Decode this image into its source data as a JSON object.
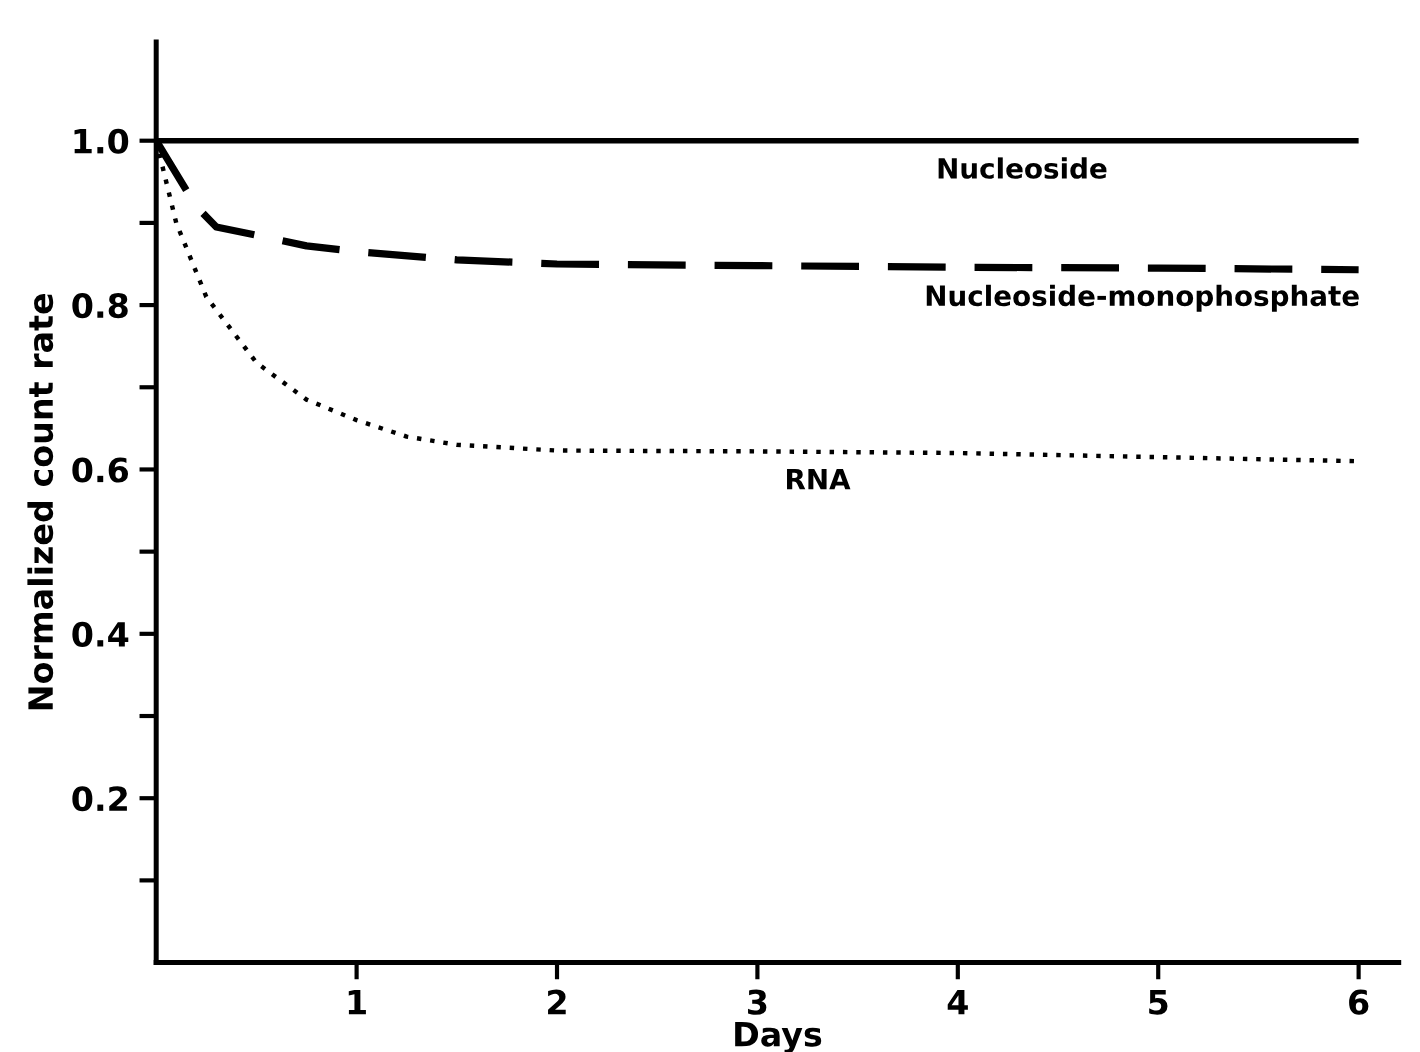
{
  "chart_data": {
    "type": "line",
    "xlabel": "Days",
    "ylabel": "Normalized count rate",
    "xlim": [
      0,
      6.2
    ],
    "ylim": [
      0,
      1.12
    ],
    "xticks": [
      1,
      2,
      3,
      4,
      5,
      6
    ],
    "yticks": [
      {
        "value": 0.1,
        "label": null
      },
      0.2,
      {
        "value": 0.3,
        "label": null
      },
      0.4,
      {
        "value": 0.5,
        "label": null
      },
      0.6,
      {
        "value": 0.7,
        "label": null
      },
      0.8,
      {
        "value": 0.9,
        "label": null
      },
      {
        "value": 1.0,
        "label": "1.0"
      }
    ],
    "grid": false,
    "legend": false,
    "marker": "none",
    "series": [
      {
        "name": "Nucleoside",
        "color": "#000000",
        "line_style": "solid",
        "x": [
          0,
          6
        ],
        "values": [
          1.0,
          1.0
        ]
      },
      {
        "name": "Nucleoside-monophosphate",
        "color": "#000000",
        "line_style": "dashed",
        "x": [
          0,
          0.1,
          0.2,
          0.3,
          0.5,
          0.75,
          1,
          1.5,
          2,
          3,
          4,
          5,
          6
        ],
        "values": [
          1.0,
          0.96,
          0.92,
          0.895,
          0.885,
          0.872,
          0.865,
          0.855,
          0.85,
          0.848,
          0.846,
          0.845,
          0.843
        ]
      },
      {
        "name": "RNA",
        "color": "#000000",
        "line_style": "dotted",
        "x": [
          0,
          0.1,
          0.25,
          0.5,
          0.75,
          1,
          1.25,
          1.5,
          2,
          3,
          4,
          5,
          6
        ],
        "values": [
          1.0,
          0.9,
          0.81,
          0.73,
          0.685,
          0.66,
          0.64,
          0.63,
          0.623,
          0.622,
          0.62,
          0.615,
          0.61
        ]
      }
    ]
  }
}
